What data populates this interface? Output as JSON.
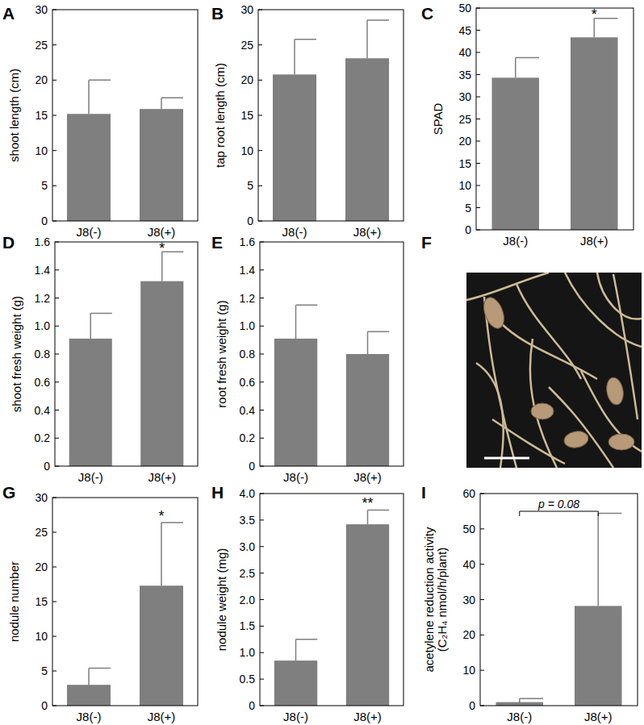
{
  "chart_data": [
    {
      "panel": "A",
      "type": "bar",
      "categories": [
        "J8(-)",
        "J8(+)"
      ],
      "values": [
        15.2,
        15.9
      ],
      "errors": [
        4.8,
        1.6
      ],
      "ylabel": "shoot length (cm)",
      "ylim": [
        0,
        30
      ],
      "yticks": [
        0,
        5,
        10,
        15,
        20,
        25,
        30
      ],
      "color": "#7f7f7f"
    },
    {
      "panel": "B",
      "type": "bar",
      "categories": [
        "J8(-)",
        "J8(+)"
      ],
      "values": [
        20.8,
        23.1
      ],
      "errors": [
        5.0,
        5.4
      ],
      "ylabel": "tap root length (cm)",
      "ylim": [
        0,
        30
      ],
      "yticks": [
        0,
        5,
        10,
        15,
        20,
        25,
        30
      ],
      "color": "#7f7f7f"
    },
    {
      "panel": "C",
      "type": "bar",
      "categories": [
        "J8(-)",
        "J8(+)"
      ],
      "values": [
        34.3,
        43.4
      ],
      "errors": [
        4.5,
        4.3
      ],
      "significance": [
        null,
        "*"
      ],
      "ylabel": "SPAD",
      "ylim": [
        0,
        50
      ],
      "yticks": [
        0,
        5,
        10,
        15,
        20,
        25,
        30,
        35,
        40,
        45,
        50
      ],
      "color": "#7f7f7f"
    },
    {
      "panel": "D",
      "type": "bar",
      "categories": [
        "J8(-)",
        "J8(+)"
      ],
      "values": [
        0.91,
        1.32
      ],
      "errors": [
        0.18,
        0.21
      ],
      "significance": [
        null,
        "*"
      ],
      "ylabel": "shoot fresh weight (g)",
      "ylim": [
        0,
        1.6
      ],
      "yticks": [
        0,
        0.2,
        0.4,
        0.6,
        0.8,
        {
          "value": 1,
          "label": "1.0"
        },
        1.2,
        1.4,
        1.6
      ],
      "color": "#7f7f7f"
    },
    {
      "panel": "E",
      "type": "bar",
      "categories": [
        "J8(-)",
        "J8(+)"
      ],
      "values": [
        0.91,
        0.8
      ],
      "errors": [
        0.24,
        0.16
      ],
      "ylabel": "root fresh weight (g)",
      "ylim": [
        0,
        1.6
      ],
      "yticks": [
        0,
        0.2,
        0.4,
        0.6,
        0.8,
        {
          "value": 1,
          "label": "1.0"
        },
        1.2,
        1.4,
        1.6
      ],
      "color": "#7f7f7f"
    },
    {
      "panel": "G",
      "type": "bar",
      "categories": [
        "J8(-)",
        "J8(+)"
      ],
      "values": [
        3.0,
        17.3
      ],
      "errors": [
        2.4,
        9.1
      ],
      "significance": [
        null,
        "*"
      ],
      "ylabel": "nodule number",
      "ylim": [
        0,
        30
      ],
      "yticks": [
        0,
        5,
        10,
        15,
        20,
        25,
        30
      ],
      "color": "#7f7f7f"
    },
    {
      "panel": "H",
      "type": "bar",
      "categories": [
        "J8(-)",
        "J8(+)"
      ],
      "values": [
        0.85,
        3.42
      ],
      "errors": [
        0.4,
        0.27
      ],
      "significance": [
        null,
        "**"
      ],
      "ylabel": "nodule weight (mg)",
      "ylim": [
        0,
        4
      ],
      "yticks": [
        0,
        0.5,
        {
          "value": 1,
          "label": "1.0"
        },
        1.5,
        {
          "value": 2,
          "label": "2.0"
        },
        2.5,
        {
          "value": 3,
          "label": "3.0"
        },
        3.5,
        {
          "value": 4,
          "label": "4.0"
        }
      ],
      "color": "#7f7f7f"
    },
    {
      "panel": "I",
      "type": "bar",
      "categories": [
        "J8(-)",
        "J8(+)"
      ],
      "values": [
        1.0,
        28.2
      ],
      "errors": [
        1.0,
        26.2
      ],
      "annotation": "p = 0.08",
      "ylabel": [
        "acetylene reduction activity",
        "(C₂H₄ nmol/h/plant)"
      ],
      "ylim": [
        0,
        60
      ],
      "yticks": [
        0,
        10,
        20,
        30,
        40,
        50,
        60
      ],
      "color": "#7f7f7f"
    }
  ],
  "photo": {
    "panel": "F"
  }
}
